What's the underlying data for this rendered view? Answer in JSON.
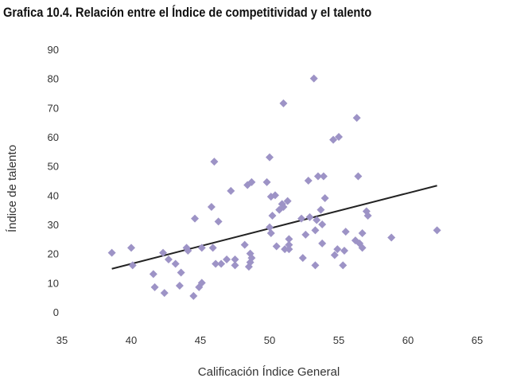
{
  "chart_data": {
    "type": "scatter",
    "title": "Grafica 10.4. Relación entre el Índice de competitividad y el talento",
    "xlabel": "Calificación Índice General",
    "ylabel": "Índice de talento",
    "xlim": [
      35,
      65
    ],
    "ylim": [
      0,
      90
    ],
    "xticks": [
      35,
      40,
      45,
      50,
      55,
      60,
      65
    ],
    "yticks": [
      0,
      10,
      20,
      30,
      40,
      50,
      60,
      70,
      80,
      90
    ],
    "grid": false,
    "legend": "none",
    "marker_color": "#9d93c6",
    "trendline_color": "#222222",
    "trendline": {
      "x": [
        38.6,
        62.1
      ],
      "y": [
        14.8,
        43.3
      ]
    },
    "points": [
      {
        "x": 38.6,
        "y": 20.3
      },
      {
        "x": 40.0,
        "y": 22.0
      },
      {
        "x": 40.1,
        "y": 16.0
      },
      {
        "x": 41.6,
        "y": 13.0
      },
      {
        "x": 41.7,
        "y": 8.5
      },
      {
        "x": 42.3,
        "y": 20.3
      },
      {
        "x": 42.4,
        "y": 6.5
      },
      {
        "x": 42.7,
        "y": 18.0
      },
      {
        "x": 43.2,
        "y": 16.5
      },
      {
        "x": 43.5,
        "y": 9.0
      },
      {
        "x": 43.6,
        "y": 13.5
      },
      {
        "x": 44.0,
        "y": 22.0
      },
      {
        "x": 44.1,
        "y": 21.0
      },
      {
        "x": 44.5,
        "y": 5.5
      },
      {
        "x": 44.6,
        "y": 32.0
      },
      {
        "x": 44.9,
        "y": 8.5
      },
      {
        "x": 45.1,
        "y": 10.0
      },
      {
        "x": 45.1,
        "y": 22.0
      },
      {
        "x": 45.8,
        "y": 36.0
      },
      {
        "x": 45.9,
        "y": 22.0
      },
      {
        "x": 46.0,
        "y": 51.5
      },
      {
        "x": 46.1,
        "y": 16.5
      },
      {
        "x": 46.3,
        "y": 31.0
      },
      {
        "x": 46.5,
        "y": 16.5
      },
      {
        "x": 46.9,
        "y": 18.0
      },
      {
        "x": 47.2,
        "y": 41.5
      },
      {
        "x": 47.5,
        "y": 18.0
      },
      {
        "x": 47.5,
        "y": 16.0
      },
      {
        "x": 48.2,
        "y": 23.0
      },
      {
        "x": 48.4,
        "y": 43.5
      },
      {
        "x": 48.5,
        "y": 15.5
      },
      {
        "x": 48.6,
        "y": 17.0
      },
      {
        "x": 48.6,
        "y": 20.0
      },
      {
        "x": 48.7,
        "y": 44.5
      },
      {
        "x": 48.7,
        "y": 18.5
      },
      {
        "x": 49.8,
        "y": 44.5
      },
      {
        "x": 50.0,
        "y": 53.0
      },
      {
        "x": 50.0,
        "y": 29.0
      },
      {
        "x": 50.1,
        "y": 27.0
      },
      {
        "x": 50.1,
        "y": 39.5
      },
      {
        "x": 50.2,
        "y": 33.0
      },
      {
        "x": 50.4,
        "y": 40.0
      },
      {
        "x": 50.5,
        "y": 22.5
      },
      {
        "x": 50.7,
        "y": 35.0
      },
      {
        "x": 50.9,
        "y": 37.0
      },
      {
        "x": 51.0,
        "y": 36.0
      },
      {
        "x": 51.0,
        "y": 71.5
      },
      {
        "x": 51.1,
        "y": 21.5
      },
      {
        "x": 51.3,
        "y": 38.0
      },
      {
        "x": 51.4,
        "y": 25.0
      },
      {
        "x": 51.4,
        "y": 23.0
      },
      {
        "x": 51.4,
        "y": 21.5
      },
      {
        "x": 52.3,
        "y": 32.0
      },
      {
        "x": 52.4,
        "y": 18.5
      },
      {
        "x": 52.6,
        "y": 26.5
      },
      {
        "x": 52.8,
        "y": 45.0
      },
      {
        "x": 52.9,
        "y": 32.5
      },
      {
        "x": 53.2,
        "y": 80.0
      },
      {
        "x": 53.3,
        "y": 28.0
      },
      {
        "x": 53.3,
        "y": 16.0
      },
      {
        "x": 53.4,
        "y": 31.5
      },
      {
        "x": 53.5,
        "y": 46.5
      },
      {
        "x": 53.7,
        "y": 35.0
      },
      {
        "x": 53.8,
        "y": 30.0
      },
      {
        "x": 53.8,
        "y": 23.5
      },
      {
        "x": 53.9,
        "y": 46.5
      },
      {
        "x": 54.0,
        "y": 39.0
      },
      {
        "x": 54.6,
        "y": 59.0
      },
      {
        "x": 54.7,
        "y": 19.5
      },
      {
        "x": 54.9,
        "y": 21.5
      },
      {
        "x": 55.0,
        "y": 60.0
      },
      {
        "x": 55.3,
        "y": 16.0
      },
      {
        "x": 55.4,
        "y": 21.0
      },
      {
        "x": 55.5,
        "y": 27.5
      },
      {
        "x": 56.2,
        "y": 24.5
      },
      {
        "x": 56.3,
        "y": 66.5
      },
      {
        "x": 56.4,
        "y": 46.5
      },
      {
        "x": 56.5,
        "y": 23.5
      },
      {
        "x": 56.7,
        "y": 27.0
      },
      {
        "x": 56.7,
        "y": 22.0
      },
      {
        "x": 57.0,
        "y": 34.5
      },
      {
        "x": 57.1,
        "y": 33.0
      },
      {
        "x": 58.8,
        "y": 25.5
      },
      {
        "x": 62.1,
        "y": 28.0
      }
    ]
  }
}
